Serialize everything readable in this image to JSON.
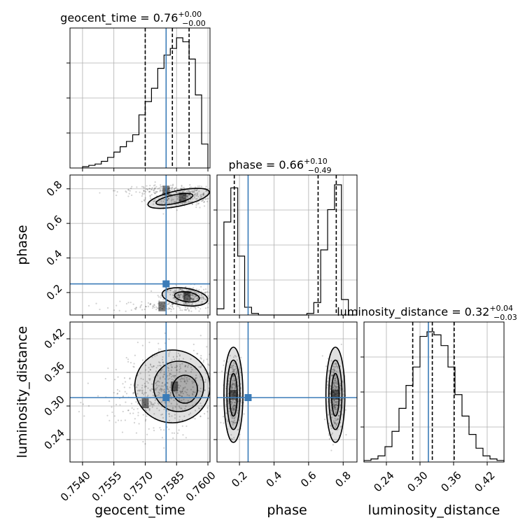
{
  "chart_data": {
    "type": "corner",
    "parameters": [
      "geocent_time",
      "phase",
      "luminosity_distance"
    ],
    "truths": {
      "geocent_time": 0.758,
      "phase": 0.25,
      "luminosity_distance": 0.315
    },
    "colors": {
      "truth": "#3b7cb8",
      "hist": "#000000",
      "grid": "#b0b0b0"
    },
    "axes": {
      "geocent_time": {
        "range": [
          0.7534,
          0.7601
        ],
        "ticks": [
          "0.7540",
          "0.7555",
          "0.7570",
          "0.7585",
          "0.7600"
        ],
        "tick_values": [
          0.754,
          0.7555,
          0.757,
          0.7585,
          0.76
        ],
        "xlabel": "geocent_time"
      },
      "phase": {
        "range": [
          0.07,
          0.88
        ],
        "ticks": [
          "0.2",
          "0.4",
          "0.6",
          "0.8"
        ],
        "tick_values": [
          0.2,
          0.4,
          0.6,
          0.8
        ],
        "xlabel": "phase",
        "ylabel": "phase"
      },
      "luminosity_distance": {
        "range": [
          0.2,
          0.45
        ],
        "ticks": [
          "0.24",
          "0.30",
          "0.36",
          "0.42"
        ],
        "tick_values": [
          0.24,
          0.3,
          0.36,
          0.42
        ],
        "xlabel": "luminosity_distance",
        "ylabel": "luminosity_distance"
      }
    },
    "marginals": [
      {
        "param": "geocent_time",
        "title": "geocent_time = 0.76",
        "title_sup": "+0.00",
        "title_sub": "−0.00",
        "quantiles": [
          0.757,
          0.7583,
          0.7591
        ],
        "bin_edges": [
          0.754,
          0.7543,
          0.7546,
          0.7549,
          0.7552,
          0.7555,
          0.7558,
          0.7561,
          0.7564,
          0.7567,
          0.757,
          0.7573,
          0.7576,
          0.7579,
          0.7582,
          0.7585,
          0.7588,
          0.7591,
          0.7594,
          0.7597,
          0.76
        ],
        "counts": [
          1,
          2,
          3,
          5,
          8,
          12,
          16,
          20,
          25,
          40,
          50,
          60,
          75,
          85,
          90,
          98,
          95,
          82,
          55,
          18
        ]
      },
      {
        "param": "phase",
        "title": "phase = 0.66",
        "title_sup": "+0.10",
        "title_sub": "−0.49",
        "quantiles": [
          0.17,
          0.655,
          0.76
        ],
        "bin_edges": [
          0.07,
          0.11,
          0.15,
          0.19,
          0.23,
          0.27,
          0.31,
          0.35,
          0.39,
          0.43,
          0.47,
          0.51,
          0.55,
          0.59,
          0.63,
          0.67,
          0.71,
          0.75,
          0.79,
          0.83,
          0.87
        ],
        "counts": [
          4,
          60,
          82,
          38,
          5,
          1,
          0,
          0,
          0,
          0,
          0,
          0,
          0,
          1,
          8,
          42,
          68,
          84,
          10,
          0
        ]
      },
      {
        "param": "luminosity_distance",
        "title": "luminosity_distance = 0.32",
        "title_sup": "+0.04",
        "title_sub": "−0.03",
        "quantiles": [
          0.287,
          0.322,
          0.361
        ],
        "bin_edges": [
          0.2,
          0.2125,
          0.225,
          0.2375,
          0.25,
          0.2625,
          0.275,
          0.2875,
          0.3,
          0.3125,
          0.325,
          0.3375,
          0.35,
          0.3625,
          0.375,
          0.3875,
          0.4,
          0.4125,
          0.425,
          0.4375,
          0.45
        ],
        "counts": [
          1,
          2,
          4,
          10,
          20,
          35,
          50,
          62,
          82,
          85,
          83,
          76,
          62,
          44,
          30,
          18,
          9,
          4,
          2,
          1
        ]
      }
    ],
    "joints": [
      {
        "x": "geocent_time",
        "y": "phase",
        "clusters": [
          {
            "x": 0.7588,
            "y": 0.75,
            "sx": 0.0009,
            "sy": 0.028,
            "skew": -1.2e-05,
            "n": 280
          },
          {
            "x": 0.758,
            "y": 0.79,
            "sx": 0.0012,
            "sy": 0.015,
            "skew": 0,
            "n": 140
          },
          {
            "x": 0.759,
            "y": 0.18,
            "sx": 0.0006,
            "sy": 0.028,
            "skew": 0,
            "n": 260
          },
          {
            "x": 0.7578,
            "y": 0.12,
            "sx": 0.0012,
            "sy": 0.015,
            "skew": 0,
            "n": 120
          }
        ],
        "contours": [
          {
            "cx": 0.7586,
            "cy": 0.745,
            "rx": 0.0015,
            "ry": 0.045,
            "rot": -12
          },
          {
            "cx": 0.7584,
            "cy": 0.74,
            "rx": 0.0009,
            "ry": 0.025,
            "rot": -12
          },
          {
            "cx": 0.7589,
            "cy": 0.175,
            "rx": 0.0011,
            "ry": 0.05,
            "rot": 8
          },
          {
            "cx": 0.759,
            "cy": 0.175,
            "rx": 0.0006,
            "ry": 0.028,
            "rot": 8
          }
        ]
      },
      {
        "x": "geocent_time",
        "y": "luminosity_distance",
        "clusters": [
          {
            "x": 0.7584,
            "y": 0.335,
            "sx": 0.0011,
            "sy": 0.035,
            "skew": 0,
            "n": 460
          },
          {
            "x": 0.757,
            "y": 0.305,
            "sx": 0.0012,
            "sy": 0.025,
            "skew": 0,
            "n": 140
          }
        ],
        "contours": [
          {
            "cx": 0.7583,
            "cy": 0.335,
            "rx": 0.0018,
            "ry": 0.065,
            "rot": 0
          },
          {
            "cx": 0.7586,
            "cy": 0.335,
            "rx": 0.0012,
            "ry": 0.045,
            "rot": 0
          },
          {
            "cx": 0.7589,
            "cy": 0.33,
            "rx": 0.0006,
            "ry": 0.025,
            "rot": 0
          }
        ]
      },
      {
        "x": "phase",
        "y": "luminosity_distance",
        "clusters": [
          {
            "x": 0.165,
            "y": 0.32,
            "sx": 0.022,
            "sy": 0.033,
            "skew": 0,
            "n": 320
          },
          {
            "x": 0.755,
            "y": 0.32,
            "sx": 0.022,
            "sy": 0.033,
            "skew": 0,
            "n": 320
          }
        ],
        "contours": [
          {
            "cx": 0.165,
            "cy": 0.32,
            "rx": 0.055,
            "ry": 0.085,
            "rot": 0
          },
          {
            "cx": 0.165,
            "cy": 0.32,
            "rx": 0.038,
            "ry": 0.062,
            "rot": 0
          },
          {
            "cx": 0.165,
            "cy": 0.32,
            "rx": 0.022,
            "ry": 0.038,
            "rot": 0
          },
          {
            "cx": 0.755,
            "cy": 0.32,
            "rx": 0.055,
            "ry": 0.085,
            "rot": 0
          },
          {
            "cx": 0.755,
            "cy": 0.32,
            "rx": 0.038,
            "ry": 0.062,
            "rot": 0
          },
          {
            "cx": 0.755,
            "cy": 0.32,
            "rx": 0.022,
            "ry": 0.038,
            "rot": 0
          }
        ]
      }
    ]
  }
}
